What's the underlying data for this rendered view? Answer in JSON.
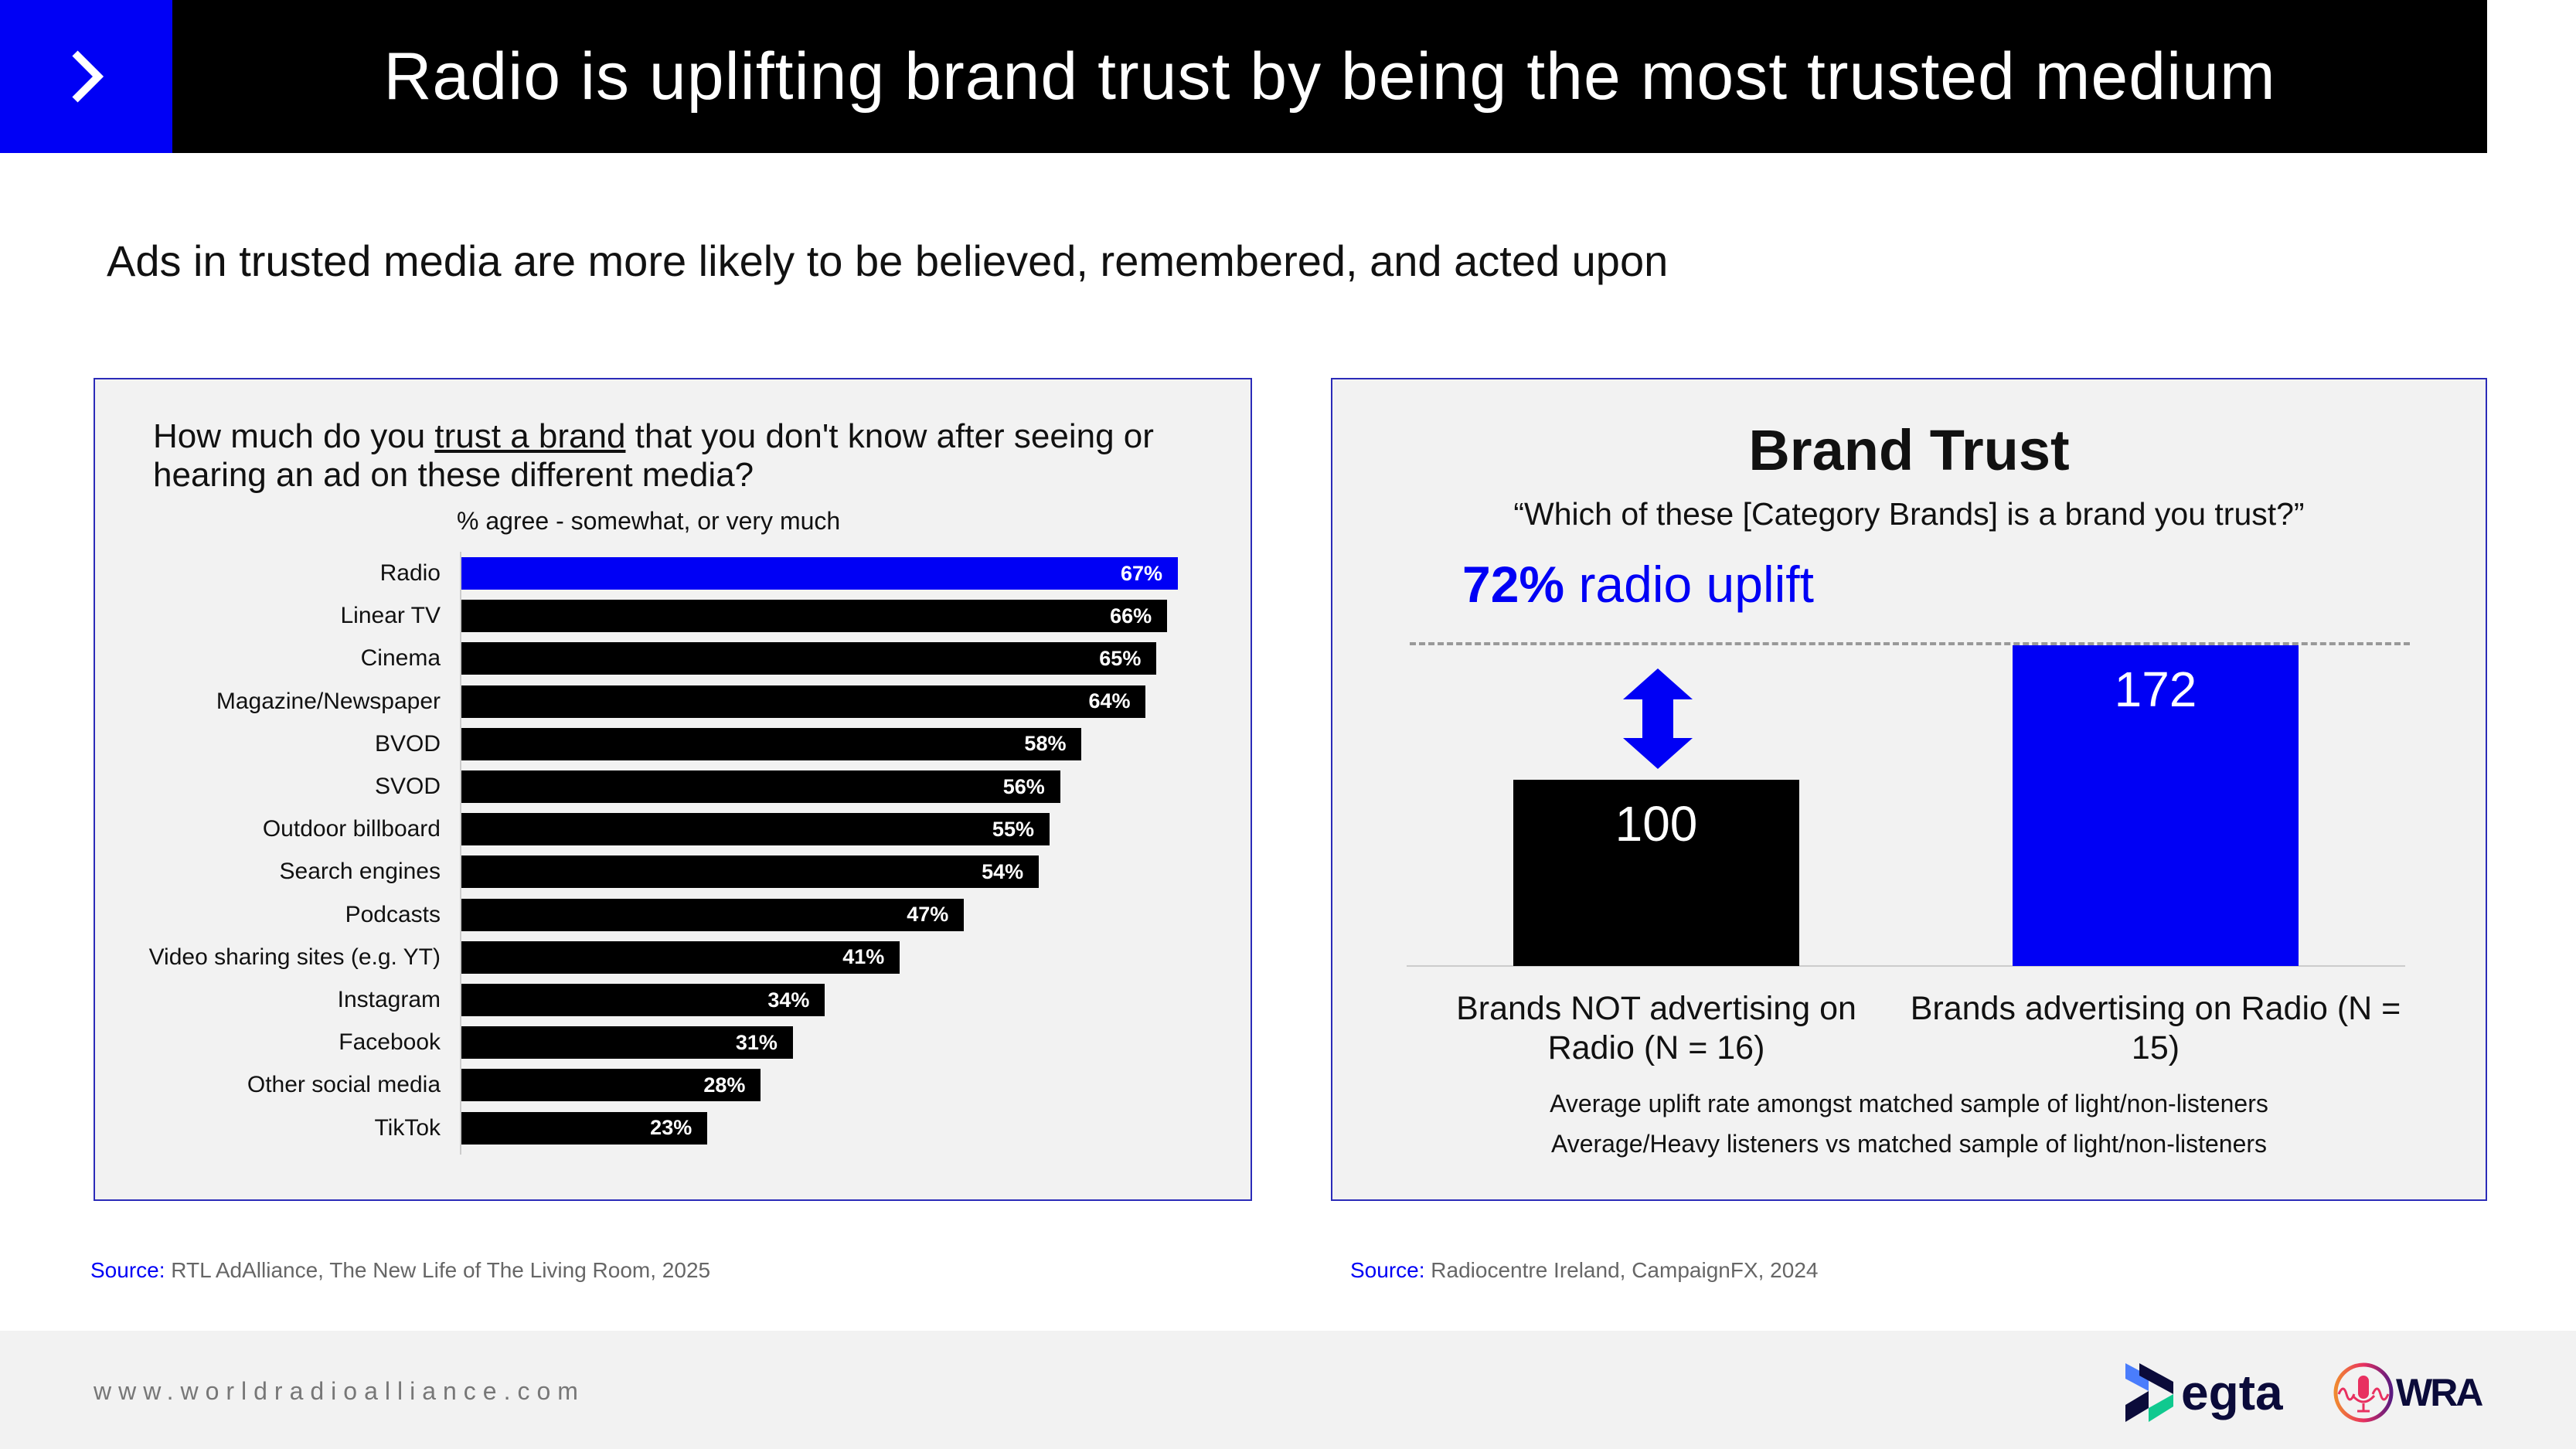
{
  "header": {
    "title": "Radio is uplifting brand trust by being the most trusted medium",
    "accent": "#0000f5"
  },
  "subtitle": "Ads in trusted media are more likely to be believed, remembered, and acted upon",
  "left_panel": {
    "question_pre": "How much do you ",
    "question_underlined": "trust a brand",
    "question_post": " that you don't know after seeing or hearing an ad on these different media?",
    "note": "% agree - somewhat, or very much",
    "source_label": "Source:",
    "source_text": "RTL AdAlliance, The New Life of The Living Room, 2025"
  },
  "right_panel": {
    "title": "Brand Trust",
    "quote": "“Which of these [Category Brands] is a brand you trust?”",
    "uplift_pct": "72%",
    "uplift_text": " radio uplift",
    "note1": "Average uplift rate amongst matched sample of light/non-listeners",
    "note2": "Average/Heavy listeners vs matched sample of light/non-listeners",
    "source_label": "Source:",
    "source_text": "Radiocentre Ireland, CampaignFX, 2024"
  },
  "chart_data": [
    {
      "type": "bar",
      "orientation": "horizontal",
      "title": "How much do you trust a brand that you don't know after seeing or hearing an ad on these different media?",
      "xlabel": "% agree - somewhat, or very much",
      "xlim": [
        0,
        67
      ],
      "categories": [
        "Radio",
        "Linear TV",
        "Cinema",
        "Magazine/Newspaper",
        "BVOD",
        "SVOD",
        "Outdoor billboard",
        "Search engines",
        "Podcasts",
        "Video sharing sites (e.g. YT)",
        "Instagram",
        "Facebook",
        "Other social media",
        "TikTok"
      ],
      "values": [
        67,
        66,
        65,
        64,
        58,
        56,
        55,
        54,
        47,
        41,
        34,
        31,
        28,
        23
      ],
      "value_labels": [
        "67%",
        "66%",
        "65%",
        "64%",
        "58%",
        "56%",
        "55%",
        "54%",
        "47%",
        "41%",
        "34%",
        "31%",
        "28%",
        "23%"
      ],
      "highlight": "Radio",
      "colors": {
        "highlight": "#0000f5",
        "default": "#000000"
      }
    },
    {
      "type": "bar",
      "title": "Brand Trust",
      "categories": [
        "Brands NOT advertising on Radio (N = 16)",
        "Brands advertising on Radio (N = 15)"
      ],
      "values": [
        100,
        172
      ],
      "value_labels": [
        "100",
        "172"
      ],
      "ylim": [
        0,
        172
      ],
      "colors": [
        "#000000",
        "#0000f5"
      ]
    }
  ],
  "footer": {
    "url": "www.worldradioalliance.com",
    "logo1": "egta",
    "logo2": "WRA"
  }
}
